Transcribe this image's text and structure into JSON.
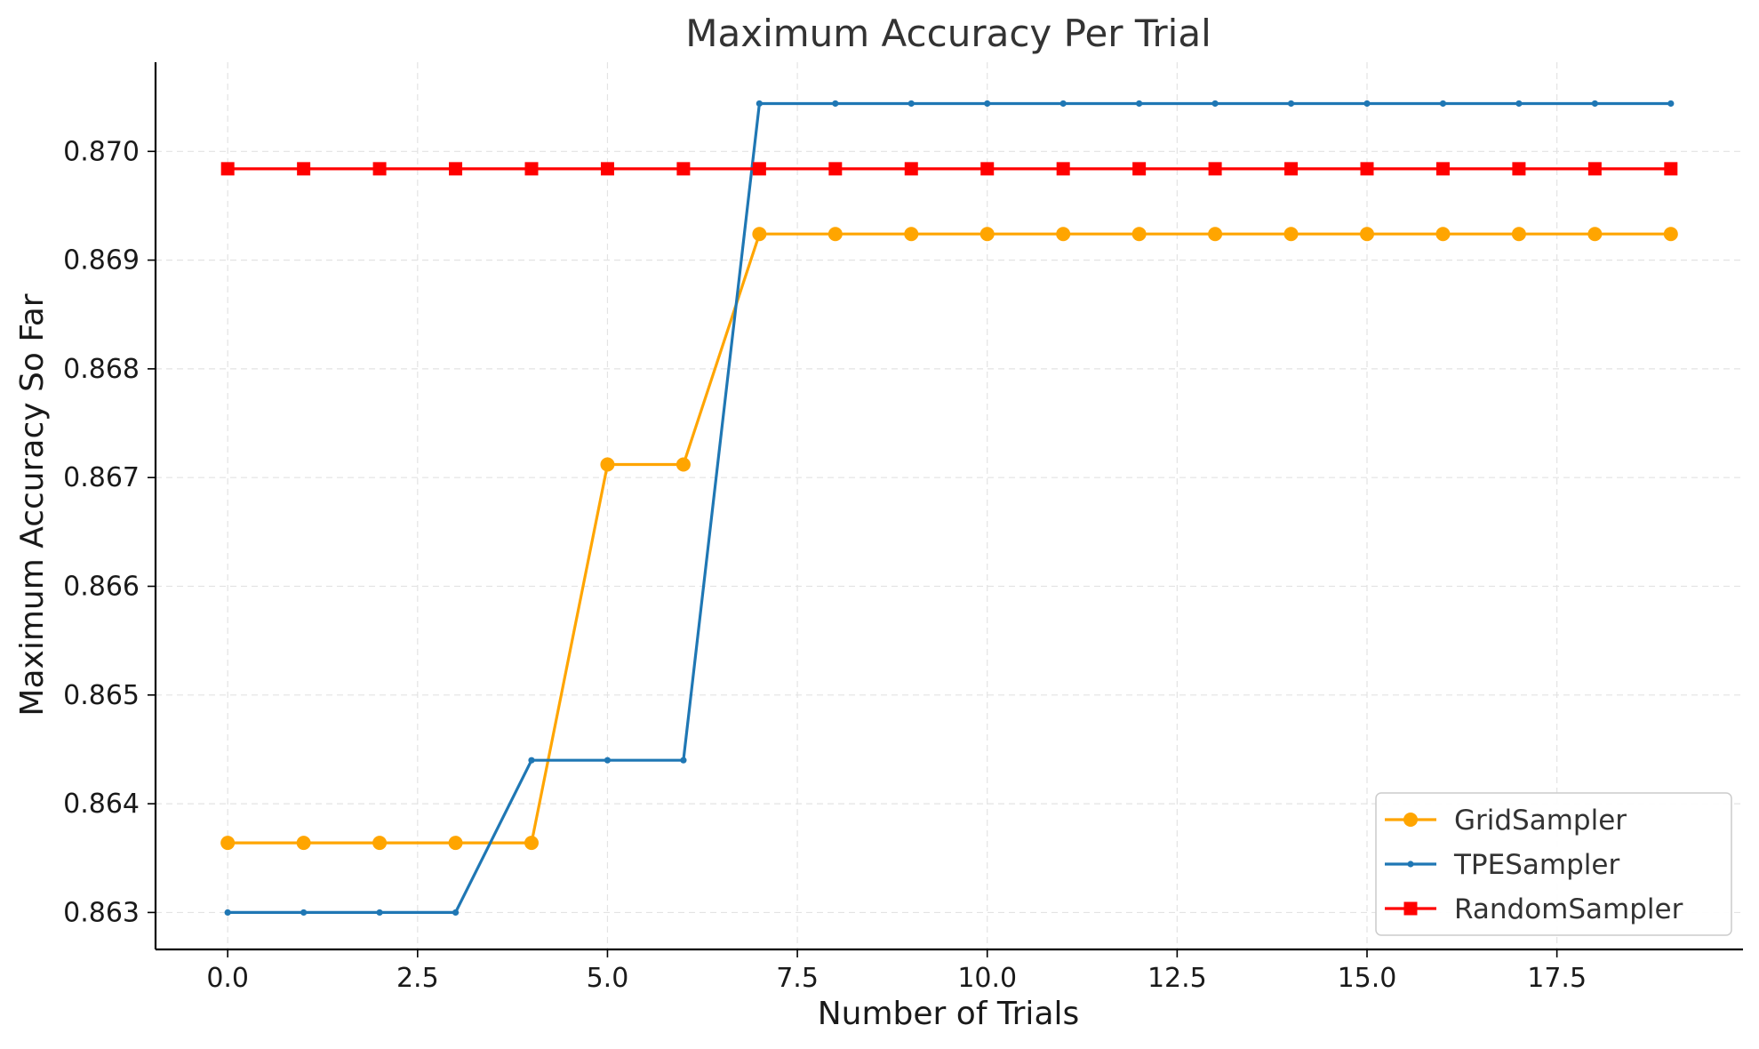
{
  "chart_data": {
    "type": "line",
    "title": "Maximum Accuracy Per Trial",
    "xlabel": "Number of Trials",
    "ylabel": "Maximum Accuracy So Far",
    "xlim": [
      -0.95,
      19.95
    ],
    "ylim": [
      0.86266,
      0.87082
    ],
    "xticks": [
      0.0,
      2.5,
      5.0,
      7.5,
      10.0,
      12.5,
      15.0,
      17.5
    ],
    "xtick_labels": [
      "0.0",
      "2.5",
      "5.0",
      "7.5",
      "10.0",
      "12.5",
      "15.0",
      "17.5"
    ],
    "yticks": [
      0.863,
      0.864,
      0.865,
      0.866,
      0.867,
      0.868,
      0.869,
      0.87
    ],
    "ytick_labels": [
      "0.863",
      "0.864",
      "0.865",
      "0.866",
      "0.867",
      "0.868",
      "0.869",
      "0.870"
    ],
    "grid": true,
    "legend_position": "bottom-right",
    "x": [
      0,
      1,
      2,
      3,
      4,
      5,
      6,
      7,
      8,
      9,
      10,
      11,
      12,
      13,
      14,
      15,
      16,
      17,
      18,
      19
    ],
    "series": [
      {
        "name": "GridSampler",
        "color": "#FFA500",
        "marker": "circle",
        "values": [
          0.86364,
          0.86364,
          0.86364,
          0.86364,
          0.86364,
          0.86712,
          0.86712,
          0.86924,
          0.86924,
          0.86924,
          0.86924,
          0.86924,
          0.86924,
          0.86924,
          0.86924,
          0.86924,
          0.86924,
          0.86924,
          0.86924,
          0.86924
        ]
      },
      {
        "name": "TPESampler",
        "color": "#1f77b4",
        "marker": "dot",
        "values": [
          0.863,
          0.863,
          0.863,
          0.863,
          0.8644,
          0.8644,
          0.8644,
          0.87044,
          0.87044,
          0.87044,
          0.87044,
          0.87044,
          0.87044,
          0.87044,
          0.87044,
          0.87044,
          0.87044,
          0.87044,
          0.87044,
          0.87044
        ]
      },
      {
        "name": "RandomSampler",
        "color": "#FF0000",
        "marker": "square",
        "values": [
          0.86984,
          0.86984,
          0.86984,
          0.86984,
          0.86984,
          0.86984,
          0.86984,
          0.86984,
          0.86984,
          0.86984,
          0.86984,
          0.86984,
          0.86984,
          0.86984,
          0.86984,
          0.86984,
          0.86984,
          0.86984,
          0.86984,
          0.86984
        ]
      }
    ]
  }
}
